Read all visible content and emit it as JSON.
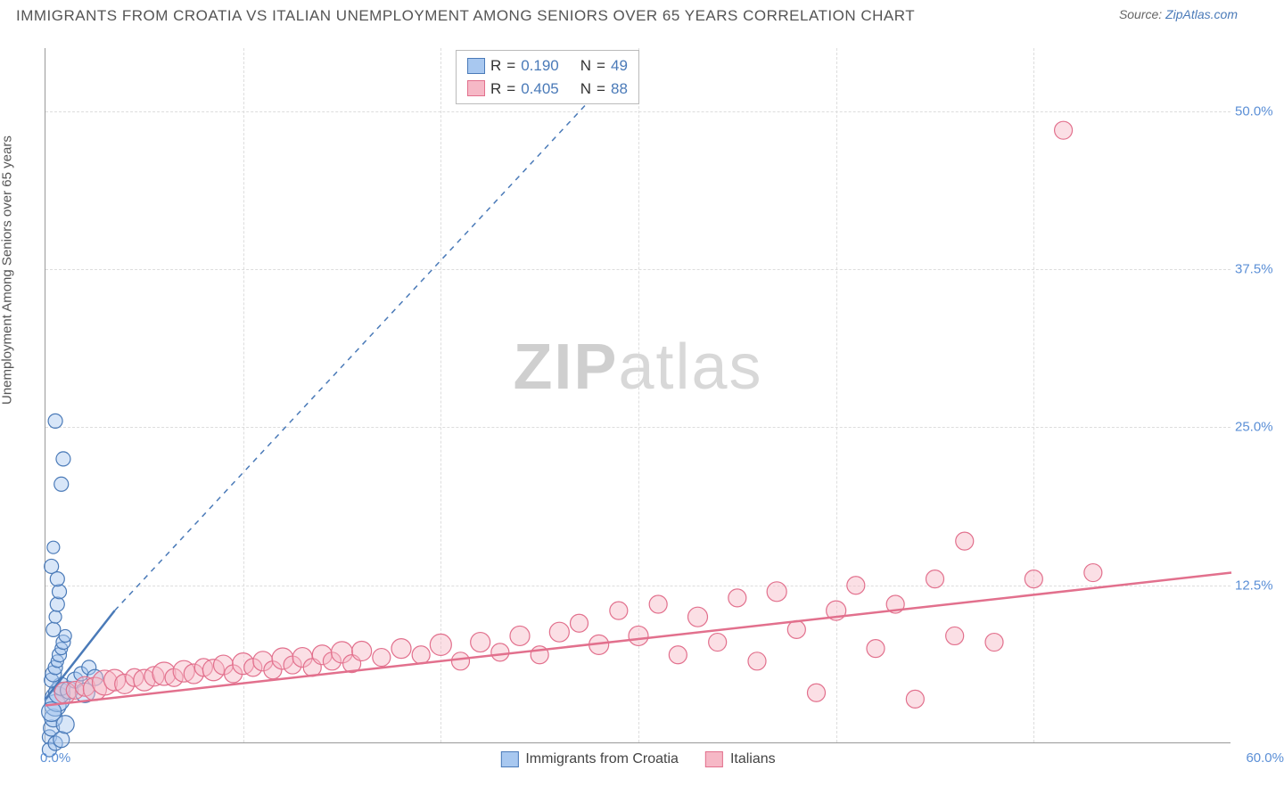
{
  "title": "IMMIGRANTS FROM CROATIA VS ITALIAN UNEMPLOYMENT AMONG SENIORS OVER 65 YEARS CORRELATION CHART",
  "source_prefix": "Source: ",
  "source_link": "ZipAtlas.com",
  "y_axis_label": "Unemployment Among Seniors over 65 years",
  "watermark_a": "ZIP",
  "watermark_b": "atlas",
  "chart": {
    "type": "scatter",
    "xlim": [
      0,
      60
    ],
    "ylim": [
      0,
      55
    ],
    "x_origin_label": "0.0%",
    "x_max_label": "60.0%",
    "y_ticks": [
      {
        "v": 12.5,
        "label": "12.5%"
      },
      {
        "v": 25.0,
        "label": "25.0%"
      },
      {
        "v": 37.5,
        "label": "37.5%"
      },
      {
        "v": 50.0,
        "label": "50.0%"
      }
    ],
    "x_grid_ticks": [
      10,
      20,
      30,
      40,
      50
    ],
    "background_color": "#ffffff",
    "grid_color": "#dddddd",
    "axis_color": "#999999",
    "marker_radius_min": 7,
    "marker_radius_max": 14,
    "series": [
      {
        "name": "Immigrants from Croatia",
        "fill": "#a8c8f0",
        "stroke": "#4a7ab8",
        "fill_opacity": 0.45,
        "R": "0.190",
        "N": "49",
        "trend_solid": {
          "x1": 0,
          "y1": 3.5,
          "x2": 3.5,
          "y2": 10.5
        },
        "trend_dashed": {
          "x1": 3.5,
          "y1": 10.5,
          "x2": 30,
          "y2": 55
        },
        "points": [
          {
            "x": 0.2,
            "y": 0.5,
            "r": 8
          },
          {
            "x": 0.3,
            "y": 1.2,
            "r": 9
          },
          {
            "x": 0.4,
            "y": 2.0,
            "r": 10
          },
          {
            "x": 0.5,
            "y": 3.0,
            "r": 12
          },
          {
            "x": 0.6,
            "y": 3.5,
            "r": 14
          },
          {
            "x": 0.7,
            "y": 4.0,
            "r": 12
          },
          {
            "x": 0.8,
            "y": 4.5,
            "r": 10
          },
          {
            "x": 0.3,
            "y": 5.0,
            "r": 8
          },
          {
            "x": 0.4,
            "y": 5.5,
            "r": 9
          },
          {
            "x": 0.5,
            "y": 6.0,
            "r": 8
          },
          {
            "x": 0.6,
            "y": 6.5,
            "r": 7
          },
          {
            "x": 0.7,
            "y": 7.0,
            "r": 8
          },
          {
            "x": 0.8,
            "y": 7.5,
            "r": 7
          },
          {
            "x": 0.9,
            "y": 8.0,
            "r": 8
          },
          {
            "x": 1.0,
            "y": 8.5,
            "r": 7
          },
          {
            "x": 0.4,
            "y": 9.0,
            "r": 8
          },
          {
            "x": 0.5,
            "y": 10.0,
            "r": 7
          },
          {
            "x": 0.6,
            "y": 11.0,
            "r": 8
          },
          {
            "x": 0.7,
            "y": 12.0,
            "r": 8
          },
          {
            "x": 0.3,
            "y": 14.0,
            "r": 8
          },
          {
            "x": 0.4,
            "y": 15.5,
            "r": 7
          },
          {
            "x": 0.8,
            "y": 20.5,
            "r": 8
          },
          {
            "x": 0.9,
            "y": 22.5,
            "r": 8
          },
          {
            "x": 0.5,
            "y": 25.5,
            "r": 8
          },
          {
            "x": 1.2,
            "y": 4.2,
            "r": 10
          },
          {
            "x": 1.5,
            "y": 5.0,
            "r": 9
          },
          {
            "x": 1.8,
            "y": 5.5,
            "r": 8
          },
          {
            "x": 2.0,
            "y": 4.0,
            "r": 11
          },
          {
            "x": 2.2,
            "y": 6.0,
            "r": 8
          },
          {
            "x": 2.5,
            "y": 5.2,
            "r": 9
          },
          {
            "x": 0.2,
            "y": -0.5,
            "r": 8
          },
          {
            "x": 0.5,
            "y": 0.0,
            "r": 8
          },
          {
            "x": 0.8,
            "y": 0.3,
            "r": 9
          },
          {
            "x": 1.0,
            "y": 1.5,
            "r": 10
          },
          {
            "x": 0.3,
            "y": 2.5,
            "r": 11
          },
          {
            "x": 0.6,
            "y": 13.0,
            "r": 8
          }
        ]
      },
      {
        "name": "Italians",
        "fill": "#f6b8c6",
        "stroke": "#e2708d",
        "fill_opacity": 0.45,
        "R": "0.405",
        "N": "88",
        "trend_solid": {
          "x1": 0,
          "y1": 3.0,
          "x2": 60,
          "y2": 13.5
        },
        "points": [
          {
            "x": 1.0,
            "y": 4.0,
            "r": 12
          },
          {
            "x": 1.5,
            "y": 4.2,
            "r": 10
          },
          {
            "x": 2.0,
            "y": 4.5,
            "r": 11
          },
          {
            "x": 2.5,
            "y": 4.3,
            "r": 13
          },
          {
            "x": 3.0,
            "y": 4.8,
            "r": 14
          },
          {
            "x": 3.5,
            "y": 5.0,
            "r": 12
          },
          {
            "x": 4.0,
            "y": 4.7,
            "r": 11
          },
          {
            "x": 4.5,
            "y": 5.2,
            "r": 10
          },
          {
            "x": 5.0,
            "y": 5.0,
            "r": 12
          },
          {
            "x": 5.5,
            "y": 5.3,
            "r": 11
          },
          {
            "x": 6.0,
            "y": 5.5,
            "r": 13
          },
          {
            "x": 6.5,
            "y": 5.2,
            "r": 10
          },
          {
            "x": 7.0,
            "y": 5.7,
            "r": 12
          },
          {
            "x": 7.5,
            "y": 5.5,
            "r": 11
          },
          {
            "x": 8.0,
            "y": 6.0,
            "r": 10
          },
          {
            "x": 8.5,
            "y": 5.8,
            "r": 12
          },
          {
            "x": 9.0,
            "y": 6.2,
            "r": 11
          },
          {
            "x": 9.5,
            "y": 5.5,
            "r": 10
          },
          {
            "x": 10.0,
            "y": 6.3,
            "r": 12
          },
          {
            "x": 10.5,
            "y": 6.0,
            "r": 10
          },
          {
            "x": 11.0,
            "y": 6.5,
            "r": 11
          },
          {
            "x": 11.5,
            "y": 5.8,
            "r": 10
          },
          {
            "x": 12.0,
            "y": 6.7,
            "r": 12
          },
          {
            "x": 12.5,
            "y": 6.2,
            "r": 10
          },
          {
            "x": 13.0,
            "y": 6.8,
            "r": 11
          },
          {
            "x": 13.5,
            "y": 6.0,
            "r": 10
          },
          {
            "x": 14.0,
            "y": 7.0,
            "r": 11
          },
          {
            "x": 14.5,
            "y": 6.5,
            "r": 10
          },
          {
            "x": 15.0,
            "y": 7.2,
            "r": 12
          },
          {
            "x": 15.5,
            "y": 6.3,
            "r": 10
          },
          {
            "x": 16.0,
            "y": 7.3,
            "r": 11
          },
          {
            "x": 17.0,
            "y": 6.8,
            "r": 10
          },
          {
            "x": 18.0,
            "y": 7.5,
            "r": 11
          },
          {
            "x": 19.0,
            "y": 7.0,
            "r": 10
          },
          {
            "x": 20.0,
            "y": 7.8,
            "r": 12
          },
          {
            "x": 21.0,
            "y": 6.5,
            "r": 10
          },
          {
            "x": 22.0,
            "y": 8.0,
            "r": 11
          },
          {
            "x": 23.0,
            "y": 7.2,
            "r": 10
          },
          {
            "x": 24.0,
            "y": 8.5,
            "r": 11
          },
          {
            "x": 25.0,
            "y": 7.0,
            "r": 10
          },
          {
            "x": 26.0,
            "y": 8.8,
            "r": 11
          },
          {
            "x": 27.0,
            "y": 9.5,
            "r": 10
          },
          {
            "x": 28.0,
            "y": 7.8,
            "r": 11
          },
          {
            "x": 29.0,
            "y": 10.5,
            "r": 10
          },
          {
            "x": 30.0,
            "y": 8.5,
            "r": 11
          },
          {
            "x": 31.0,
            "y": 11.0,
            "r": 10
          },
          {
            "x": 32.0,
            "y": 7.0,
            "r": 10
          },
          {
            "x": 33.0,
            "y": 10.0,
            "r": 11
          },
          {
            "x": 34.0,
            "y": 8.0,
            "r": 10
          },
          {
            "x": 35.0,
            "y": 11.5,
            "r": 10
          },
          {
            "x": 36.0,
            "y": 6.5,
            "r": 10
          },
          {
            "x": 37.0,
            "y": 12.0,
            "r": 11
          },
          {
            "x": 38.0,
            "y": 9.0,
            "r": 10
          },
          {
            "x": 39.0,
            "y": 4.0,
            "r": 10
          },
          {
            "x": 40.0,
            "y": 10.5,
            "r": 11
          },
          {
            "x": 41.0,
            "y": 12.5,
            "r": 10
          },
          {
            "x": 42.0,
            "y": 7.5,
            "r": 10
          },
          {
            "x": 43.0,
            "y": 11.0,
            "r": 10
          },
          {
            "x": 44.0,
            "y": 3.5,
            "r": 10
          },
          {
            "x": 45.0,
            "y": 13.0,
            "r": 10
          },
          {
            "x": 46.0,
            "y": 8.5,
            "r": 10
          },
          {
            "x": 46.5,
            "y": 16.0,
            "r": 10
          },
          {
            "x": 48.0,
            "y": 8.0,
            "r": 10
          },
          {
            "x": 50.0,
            "y": 13.0,
            "r": 10
          },
          {
            "x": 51.5,
            "y": 48.5,
            "r": 10
          },
          {
            "x": 53.0,
            "y": 13.5,
            "r": 10
          }
        ]
      }
    ]
  },
  "legend_top": {
    "r_label": "R",
    "n_label": "N",
    "eq": " = "
  },
  "legend_bottom": [
    {
      "series_index": 0
    },
    {
      "series_index": 1
    }
  ]
}
